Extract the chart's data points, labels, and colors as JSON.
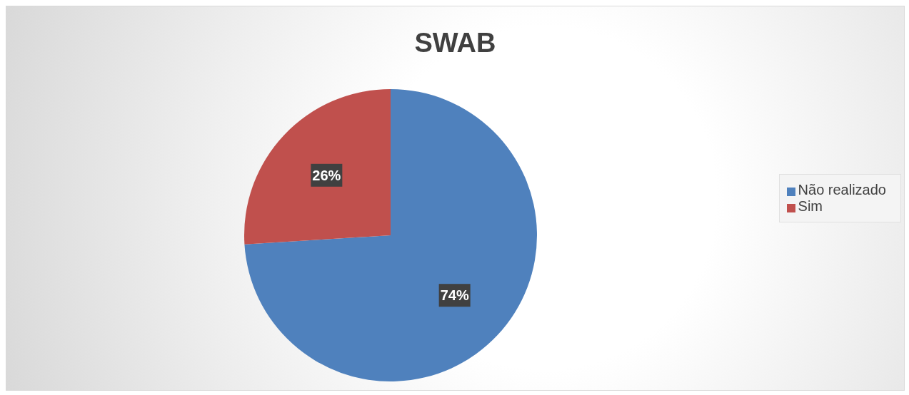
{
  "chart_data": {
    "type": "pie",
    "title": "SWAB",
    "categories": [
      "Não realizado",
      "Sim"
    ],
    "values": [
      74,
      26
    ],
    "colors": [
      "#4f81bd",
      "#c0504d"
    ],
    "value_labels": [
      "74%",
      "26%"
    ],
    "legend": "right"
  }
}
